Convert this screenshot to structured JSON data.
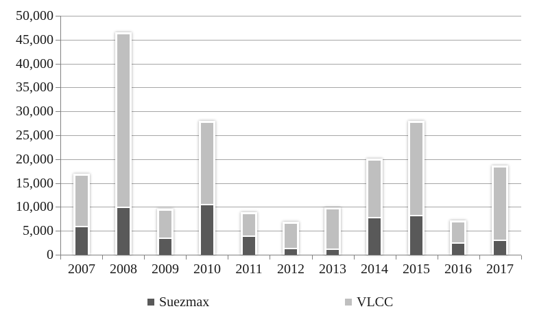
{
  "chart_data": {
    "type": "bar",
    "stacked": true,
    "title": "",
    "xlabel": "",
    "ylabel": "",
    "categories": [
      "2007",
      "2008",
      "2009",
      "2010",
      "2011",
      "2012",
      "2013",
      "2014",
      "2015",
      "2016",
      "2017"
    ],
    "series": [
      {
        "name": "Suezmax",
        "color": "#595959",
        "values": [
          5700,
          9800,
          3300,
          10400,
          3700,
          1200,
          1000,
          7600,
          8000,
          2300,
          2900
        ]
      },
      {
        "name": "VLCC",
        "color": "#bfbfbf",
        "values": [
          10500,
          36100,
          5600,
          16900,
          4400,
          5000,
          8200,
          11800,
          19300,
          4200,
          15100
        ]
      }
    ],
    "totals": [
      16200,
      45900,
      8900,
      27300,
      8100,
      6200,
      9200,
      19400,
      27300,
      6500,
      18000
    ],
    "ylim": [
      0,
      50000
    ],
    "ytick_step": 5000,
    "y_tick_labels": [
      "50,000",
      "45,000",
      "40,000",
      "35,000",
      "30,000",
      "25,000",
      "20,000",
      "15,000",
      "10,000",
      "5,000",
      "0"
    ],
    "grid": true,
    "legend_position": "bottom"
  },
  "legend": {
    "items": [
      {
        "label": "Suezmax",
        "color": "#595959"
      },
      {
        "label": "VLCC",
        "color": "#bfbfbf"
      }
    ]
  },
  "colors": {
    "suezmax": "#595959",
    "vlcc": "#bfbfbf",
    "gridline": "#a6a6a6",
    "axis": "#808080",
    "text": "#1a1a1a",
    "background": "#ffffff"
  }
}
